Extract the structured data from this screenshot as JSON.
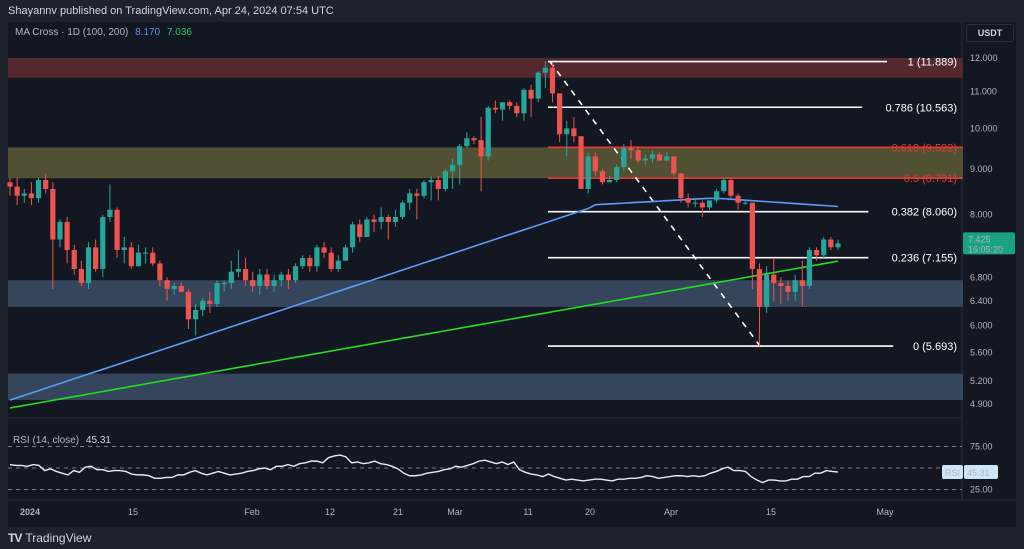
{
  "header": {
    "published": "Shayannv published on TradingView.com, Apr 24, 2024 07:54 UTC"
  },
  "legend": {
    "indicator": "MA Cross · 1D (100, 200)",
    "ma100_value": "8.170",
    "ma200_value": "7.036"
  },
  "price_axis": {
    "currency": "USDT",
    "ticks": [
      "12.000",
      "11.000",
      "10.000",
      "9.000",
      "8.000",
      "6.800",
      "6.400",
      "6.000",
      "5.600",
      "5.200",
      "4.900"
    ],
    "last_price": "7.425",
    "countdown": "16:05:20"
  },
  "rsi": {
    "label": "RSI (14, close)",
    "value": "45.31",
    "badge_name": "RSI",
    "ticks": [
      "75.00",
      "25.00"
    ]
  },
  "time_axis": [
    "2024",
    "15",
    "Feb",
    "12",
    "21",
    "Mar",
    "11",
    "20",
    "Apr",
    "15",
    "May"
  ],
  "footer": {
    "brand": "TradingView"
  },
  "colors": {
    "background": "#131722",
    "up": "#26a69a",
    "down": "#ef5350",
    "ma100": "#5b9cf6",
    "ma200": "#22dd22",
    "resistance_zone": "#5c2a30",
    "fib_zone": "#5a5735",
    "support_zone": "#3a4a63",
    "price_badge": "#1aa383",
    "rsi_badge": "#cfe5fb"
  },
  "chart_data": [
    {
      "type": "candlestick",
      "title": "MA Cross · 1D (100, 200)",
      "ylabel": "USDT",
      "yscale": "log",
      "ylim": [
        4.75,
        12.3
      ],
      "x_ticks": [
        "2024",
        "15",
        "Feb",
        "12",
        "21",
        "Mar",
        "11",
        "20",
        "Apr",
        "15",
        "May"
      ],
      "y_ticks": [
        12.0,
        11.0,
        10.0,
        9.0,
        8.0,
        6.8,
        6.4,
        6.0,
        5.6,
        5.2,
        4.9
      ],
      "last_price": 7.425,
      "candles_ohlc": [
        [
          8.7,
          8.8,
          8.4,
          8.6
        ],
        [
          8.6,
          8.8,
          8.2,
          8.4
        ],
        [
          8.4,
          8.55,
          8.25,
          8.45
        ],
        [
          8.45,
          8.7,
          8.2,
          8.35
        ],
        [
          8.35,
          8.8,
          8.25,
          8.75
        ],
        [
          8.75,
          8.9,
          8.45,
          8.55
        ],
        [
          8.55,
          8.7,
          6.6,
          7.5
        ],
        [
          7.5,
          7.9,
          7.35,
          7.85
        ],
        [
          7.85,
          7.95,
          7.05,
          7.3
        ],
        [
          7.3,
          7.4,
          6.85,
          6.95
        ],
        [
          6.95,
          7.1,
          6.65,
          6.7
        ],
        [
          6.7,
          7.45,
          6.6,
          7.35
        ],
        [
          7.35,
          7.5,
          6.9,
          6.95
        ],
        [
          6.95,
          8.0,
          6.8,
          7.95
        ],
        [
          7.95,
          8.65,
          7.85,
          8.1
        ],
        [
          8.1,
          8.15,
          7.15,
          7.3
        ],
        [
          7.3,
          7.55,
          7.05,
          7.35
        ],
        [
          7.35,
          7.45,
          6.95,
          7.0
        ],
        [
          7.0,
          7.4,
          7.0,
          7.25
        ],
        [
          7.25,
          7.35,
          7.05,
          7.25
        ],
        [
          7.25,
          7.35,
          7.0,
          7.05
        ],
        [
          7.05,
          7.1,
          6.65,
          6.75
        ],
        [
          6.75,
          6.8,
          6.4,
          6.6
        ],
        [
          6.6,
          6.7,
          6.5,
          6.65
        ],
        [
          6.65,
          6.7,
          6.55,
          6.55
        ],
        [
          6.55,
          6.6,
          5.95,
          6.1
        ],
        [
          6.1,
          6.35,
          5.85,
          6.25
        ],
        [
          6.25,
          6.45,
          6.15,
          6.4
        ],
        [
          6.4,
          6.55,
          6.2,
          6.35
        ],
        [
          6.35,
          6.75,
          6.3,
          6.7
        ],
        [
          6.7,
          6.75,
          6.55,
          6.7
        ],
        [
          6.7,
          7.1,
          6.6,
          6.9
        ],
        [
          6.9,
          7.3,
          6.8,
          6.95
        ],
        [
          6.95,
          7.15,
          6.65,
          6.75
        ],
        [
          6.75,
          6.9,
          6.55,
          6.65
        ],
        [
          6.65,
          6.95,
          6.5,
          6.85
        ],
        [
          6.85,
          6.95,
          6.6,
          6.65
        ],
        [
          6.65,
          6.85,
          6.55,
          6.75
        ],
        [
          6.75,
          6.9,
          6.65,
          6.85
        ],
        [
          6.85,
          6.95,
          6.6,
          6.75
        ],
        [
          6.75,
          7.05,
          6.7,
          7.0
        ],
        [
          7.0,
          7.2,
          6.95,
          7.15
        ],
        [
          7.15,
          7.2,
          6.9,
          7.0
        ],
        [
          7.0,
          7.4,
          6.9,
          7.35
        ],
        [
          7.35,
          7.45,
          7.15,
          7.25
        ],
        [
          7.25,
          7.35,
          6.9,
          6.95
        ],
        [
          6.95,
          7.2,
          6.9,
          7.1
        ],
        [
          7.1,
          7.4,
          7.1,
          7.35
        ],
        [
          7.35,
          7.85,
          7.25,
          7.8
        ],
        [
          7.8,
          7.9,
          7.45,
          7.55
        ],
        [
          7.55,
          7.95,
          7.55,
          7.9
        ],
        [
          7.9,
          8.0,
          7.65,
          7.85
        ],
        [
          7.85,
          8.15,
          7.7,
          7.95
        ],
        [
          7.95,
          8.0,
          7.5,
          7.85
        ],
        [
          7.85,
          8.1,
          7.75,
          7.95
        ],
        [
          7.95,
          8.3,
          7.9,
          8.25
        ],
        [
          8.25,
          8.55,
          8.1,
          8.45
        ],
        [
          8.45,
          8.55,
          7.9,
          8.4
        ],
        [
          8.4,
          8.75,
          8.35,
          8.7
        ],
        [
          8.7,
          8.85,
          8.3,
          8.75
        ],
        [
          8.75,
          8.85,
          8.3,
          8.55
        ],
        [
          8.55,
          9.0,
          8.5,
          8.95
        ],
        [
          8.95,
          9.25,
          8.55,
          9.1
        ],
        [
          9.1,
          9.6,
          8.65,
          9.55
        ],
        [
          9.55,
          9.9,
          9.5,
          9.75
        ],
        [
          9.75,
          9.8,
          9.6,
          9.7
        ],
        [
          9.7,
          10.3,
          8.5,
          9.3
        ],
        [
          9.3,
          10.6,
          9.2,
          10.55
        ],
        [
          10.55,
          10.75,
          10.4,
          10.5
        ],
        [
          10.5,
          10.7,
          10.2,
          10.7
        ],
        [
          10.7,
          10.75,
          10.5,
          10.6
        ],
        [
          10.6,
          10.7,
          10.3,
          10.4
        ],
        [
          10.4,
          11.1,
          10.2,
          11.05
        ],
        [
          11.05,
          11.2,
          10.3,
          10.8
        ],
        [
          10.8,
          11.6,
          10.7,
          11.55
        ],
        [
          11.55,
          11.9,
          11.1,
          11.7
        ],
        [
          11.7,
          11.85,
          10.7,
          10.95
        ],
        [
          10.95,
          10.95,
          9.65,
          9.85
        ],
        [
          9.85,
          10.2,
          9.3,
          10.0
        ],
        [
          10.0,
          10.3,
          9.65,
          9.8
        ],
        [
          9.8,
          9.8,
          8.55,
          8.55
        ],
        [
          8.55,
          9.4,
          8.45,
          9.3
        ],
        [
          9.3,
          9.4,
          8.85,
          8.95
        ],
        [
          8.95,
          9.0,
          8.65,
          8.7
        ],
        [
          8.7,
          8.85,
          8.7,
          8.75
        ],
        [
          8.75,
          9.1,
          8.7,
          9.05
        ],
        [
          9.05,
          9.6,
          8.95,
          9.5
        ],
        [
          9.5,
          9.7,
          9.25,
          9.45
        ],
        [
          9.45,
          9.55,
          9.15,
          9.2
        ],
        [
          9.2,
          9.35,
          9.1,
          9.25
        ],
        [
          9.25,
          9.45,
          9.15,
          9.35
        ],
        [
          9.35,
          9.4,
          9.2,
          9.2
        ],
        [
          9.2,
          9.4,
          9.2,
          9.3
        ],
        [
          9.3,
          9.3,
          8.85,
          8.9
        ],
        [
          8.9,
          8.9,
          8.25,
          8.35
        ],
        [
          8.35,
          8.45,
          8.15,
          8.25
        ],
        [
          8.25,
          8.35,
          8.15,
          8.25
        ],
        [
          8.25,
          8.3,
          7.95,
          8.15
        ],
        [
          8.15,
          8.3,
          8.1,
          8.3
        ],
        [
          8.3,
          8.55,
          8.25,
          8.5
        ],
        [
          8.5,
          8.8,
          8.45,
          8.75
        ],
        [
          8.75,
          8.8,
          8.35,
          8.4
        ],
        [
          8.4,
          8.45,
          8.1,
          8.25
        ],
        [
          8.25,
          8.3,
          8.2,
          8.25
        ],
        [
          8.25,
          8.25,
          6.6,
          6.95
        ],
        [
          6.95,
          7.05,
          5.69,
          6.3
        ],
        [
          6.3,
          7.0,
          6.2,
          6.85
        ],
        [
          6.85,
          7.15,
          6.4,
          6.7
        ],
        [
          6.7,
          6.8,
          6.35,
          6.65
        ],
        [
          6.65,
          6.75,
          6.4,
          6.55
        ],
        [
          6.55,
          6.85,
          6.4,
          6.75
        ],
        [
          6.75,
          7.1,
          6.3,
          6.65
        ],
        [
          6.65,
          7.35,
          6.6,
          7.3
        ],
        [
          7.3,
          7.35,
          7.1,
          7.2
        ],
        [
          7.2,
          7.55,
          7.15,
          7.5
        ],
        [
          7.5,
          7.55,
          7.3,
          7.35
        ],
        [
          7.35,
          7.5,
          7.3,
          7.425
        ]
      ],
      "series": [
        {
          "name": "MA 100",
          "color": "#5b9cf6",
          "last": 8.17
        },
        {
          "name": "MA 200",
          "color": "#22dd22",
          "last": 7.036
        }
      ],
      "fibonacci": [
        {
          "level": "1",
          "price": 11.889
        },
        {
          "level": "0.786",
          "price": 10.563
        },
        {
          "level": "0.618",
          "price": 9.522
        },
        {
          "level": "0.5",
          "price": 8.791
        },
        {
          "level": "0.382",
          "price": 8.06
        },
        {
          "level": "0.236",
          "price": 7.155
        },
        {
          "level": "0",
          "price": 5.693
        }
      ],
      "zones": [
        {
          "name": "resistance",
          "from": 11.4,
          "to": 12.0
        },
        {
          "name": "fib-golden-zone",
          "from": 8.79,
          "to": 9.52
        },
        {
          "name": "support-1",
          "from": 6.3,
          "to": 6.75
        },
        {
          "name": "support-2",
          "from": 4.95,
          "to": 5.3
        }
      ]
    },
    {
      "type": "line",
      "title": "RSI (14, close)",
      "ylim": [
        15,
        85
      ],
      "y_ticks": [
        75,
        50,
        25
      ],
      "last": 45.31,
      "values": [
        54,
        53,
        53,
        52,
        54,
        53,
        47,
        49,
        46,
        44,
        42,
        47,
        45,
        51,
        52,
        48,
        48,
        46,
        47,
        47,
        46,
        43,
        42,
        42,
        41,
        38,
        38,
        39,
        39,
        42,
        42,
        45,
        47,
        44,
        42,
        44,
        46,
        44,
        42,
        43,
        44,
        46,
        47,
        49,
        50,
        48,
        52,
        52,
        54,
        52,
        55,
        56,
        58,
        58,
        56,
        62,
        64,
        65,
        63,
        56,
        57,
        55,
        56,
        58,
        55,
        54,
        52,
        49,
        44,
        41,
        41,
        42,
        44,
        45,
        46,
        48,
        49,
        52,
        51,
        53,
        55,
        58,
        59,
        57,
        55,
        57,
        54,
        57,
        48,
        45,
        43,
        42,
        40,
        43,
        40,
        38,
        36,
        37,
        36,
        35,
        36,
        37,
        37,
        36,
        35,
        37,
        37,
        38,
        38,
        39,
        41,
        40,
        38,
        39,
        40,
        41,
        41,
        40,
        41,
        40,
        41,
        44,
        46,
        49,
        51,
        47,
        47,
        46,
        40,
        36,
        33,
        36,
        36,
        35,
        35,
        37,
        37,
        40,
        40,
        44,
        44,
        47,
        46,
        45.31
      ]
    }
  ]
}
